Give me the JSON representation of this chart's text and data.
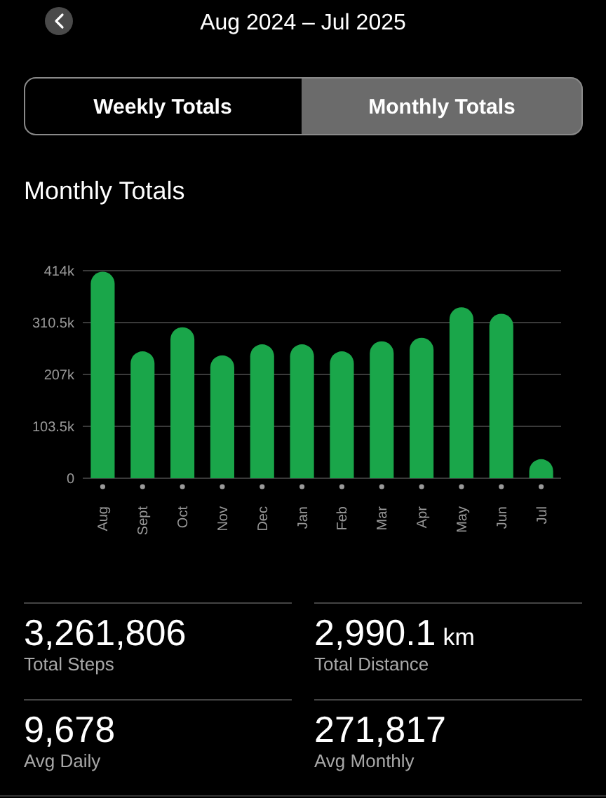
{
  "chart_data": {
    "type": "bar",
    "title": "Monthly Totals",
    "subtitle": "Aug 2024 – Jul 2025",
    "categories": [
      "Aug",
      "Sept",
      "Oct",
      "Nov",
      "Dec",
      "Jan",
      "Feb",
      "Mar",
      "Apr",
      "May",
      "Jun",
      "Jul"
    ],
    "values": [
      412000,
      253000,
      301000,
      245000,
      267000,
      267000,
      253000,
      273000,
      280000,
      341000,
      328000,
      38000
    ],
    "color": "#1aa64a",
    "ylim": [
      0,
      414000
    ],
    "yticks": [
      0,
      {
        "value": 103500,
        "label": "103.5k"
      },
      {
        "value": 207000,
        "label": "207k"
      },
      {
        "value": 310500,
        "label": "310.5k"
      },
      {
        "value": 414000,
        "label": "414k"
      }
    ],
    "grid": "y",
    "annotations": [
      "Weekly Totals",
      "Monthly Totals",
      "3,261,806",
      "Total Steps",
      "2,990.1 km",
      "Total Distance",
      "9,678",
      "Avg Daily",
      "271,817",
      "Avg Monthly"
    ]
  }
}
